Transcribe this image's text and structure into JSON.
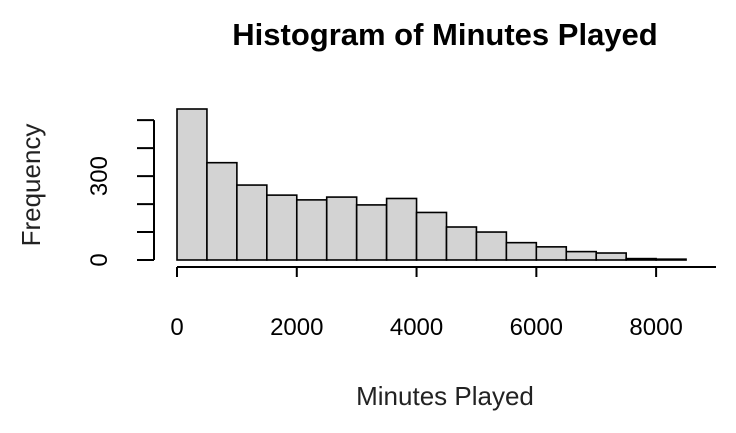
{
  "chart_data": {
    "type": "bar",
    "title": "Histogram of Minutes Played",
    "xlabel": "Minutes Played",
    "ylabel": "Frequency",
    "xlim": [
      0,
      9000
    ],
    "ylim": [
      0,
      540
    ],
    "bin_width": 500,
    "bins": [
      {
        "x0": 0,
        "x1": 500,
        "value": 540
      },
      {
        "x0": 500,
        "x1": 1000,
        "value": 348
      },
      {
        "x0": 1000,
        "x1": 1500,
        "value": 268
      },
      {
        "x0": 1500,
        "x1": 2000,
        "value": 232
      },
      {
        "x0": 2000,
        "x1": 2500,
        "value": 215
      },
      {
        "x0": 2500,
        "x1": 3000,
        "value": 225
      },
      {
        "x0": 3000,
        "x1": 3500,
        "value": 197
      },
      {
        "x0": 3500,
        "x1": 4000,
        "value": 220
      },
      {
        "x0": 4000,
        "x1": 4500,
        "value": 170
      },
      {
        "x0": 4500,
        "x1": 5000,
        "value": 118
      },
      {
        "x0": 5000,
        "x1": 5500,
        "value": 100
      },
      {
        "x0": 5500,
        "x1": 6000,
        "value": 62
      },
      {
        "x0": 6000,
        "x1": 6500,
        "value": 47
      },
      {
        "x0": 6500,
        "x1": 7000,
        "value": 30
      },
      {
        "x0": 7000,
        "x1": 7500,
        "value": 25
      },
      {
        "x0": 7500,
        "x1": 8000,
        "value": 5
      },
      {
        "x0": 8000,
        "x1": 8500,
        "value": 3
      }
    ],
    "x_ticks": [
      0,
      2000,
      4000,
      6000,
      8000
    ],
    "x_tick_labels": [
      "0",
      "2000",
      "4000",
      "6000",
      "8000"
    ],
    "y_ticks": [
      0,
      100,
      200,
      300,
      400,
      500
    ],
    "y_tick_labels": [
      "0",
      "",
      "",
      "300",
      "",
      ""
    ],
    "grid": false,
    "legend": "none",
    "bar_fill": "#d3d3d3",
    "bar_stroke": "#000000"
  }
}
